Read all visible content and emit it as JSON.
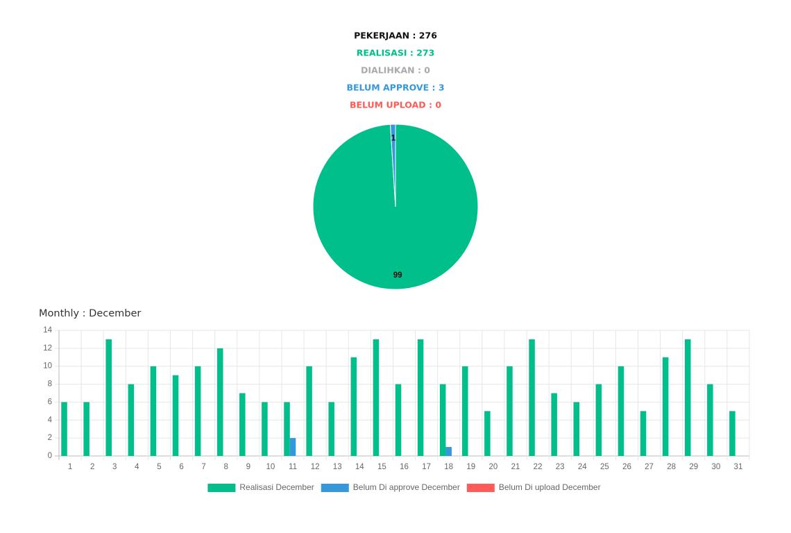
{
  "summary": [
    {
      "text": "PEKERJAAN : 276",
      "color": "#111111"
    },
    {
      "text": "REALISASI : 273",
      "color": "#00bf8a"
    },
    {
      "text": "DIALIHKAN : 0",
      "color": "#aaaaaa"
    },
    {
      "text": "BELUM APPROVE : 3",
      "color": "#3498db"
    },
    {
      "text": "BELUM UPLOAD : 0",
      "color": "#ff5b57"
    }
  ],
  "chart_data": [
    {
      "type": "pie",
      "values": [
        99,
        1
      ],
      "colors": [
        "#00bf8a",
        "#3498db"
      ]
    },
    {
      "type": "bar",
      "title": "Monthly : December",
      "categories": [
        "1",
        "2",
        "3",
        "4",
        "5",
        "6",
        "7",
        "8",
        "9",
        "10",
        "11",
        "12",
        "13",
        "14",
        "15",
        "16",
        "17",
        "18",
        "19",
        "20",
        "21",
        "22",
        "23",
        "24",
        "25",
        "26",
        "27",
        "28",
        "29",
        "30",
        "31"
      ],
      "series": [
        {
          "name": "Realisasi December",
          "color": "#00bf8a",
          "values": [
            6,
            6,
            13,
            8,
            10,
            9,
            10,
            12,
            7,
            6,
            6,
            10,
            6,
            11,
            13,
            8,
            13,
            8,
            10,
            5,
            10,
            13,
            7,
            6,
            8,
            10,
            5,
            11,
            13,
            8,
            5
          ]
        },
        {
          "name": "Belum Di approve December",
          "color": "#3498db",
          "values": [
            0,
            0,
            0,
            0,
            0,
            0,
            0,
            0,
            0,
            0,
            2,
            0,
            0,
            0,
            0,
            0,
            0,
            1,
            0,
            0,
            0,
            0,
            0,
            0,
            0,
            0,
            0,
            0,
            0,
            0,
            0
          ]
        },
        {
          "name": "Belum Di upload December",
          "color": "#ff5b57",
          "values": [
            0,
            0,
            0,
            0,
            0,
            0,
            0,
            0,
            0,
            0,
            0,
            0,
            0,
            0,
            0,
            0,
            0,
            0,
            0,
            0,
            0,
            0,
            0,
            0,
            0,
            0,
            0,
            0,
            0,
            0,
            0
          ]
        }
      ],
      "ylim": [
        0,
        14
      ],
      "yticks": [
        0,
        2,
        4,
        6,
        8,
        10,
        12,
        14
      ],
      "grid": true
    }
  ]
}
